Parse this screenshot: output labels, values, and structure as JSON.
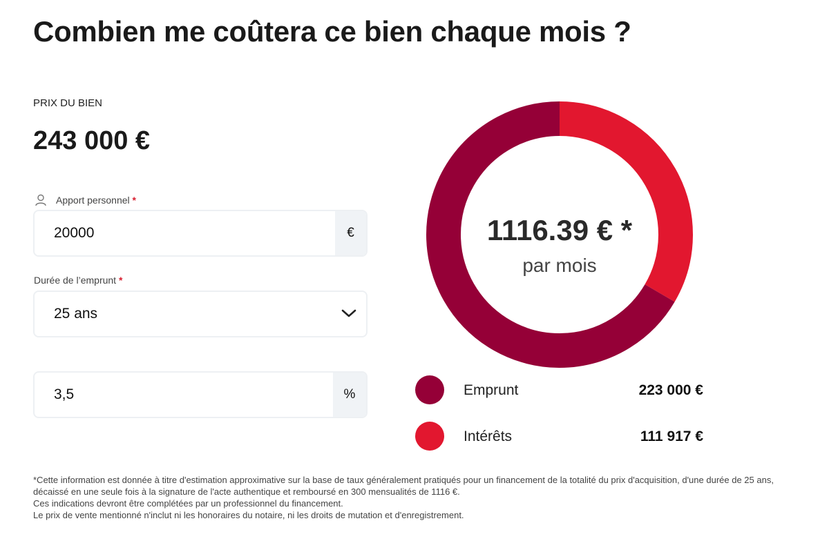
{
  "header": {
    "title": "Combien me coûtera ce bien chaque mois ?"
  },
  "price": {
    "caption": "PRIX DU BIEN",
    "value": "243 000 €"
  },
  "form": {
    "down_payment": {
      "label": "Apport personnel",
      "required": "*",
      "value": "20000",
      "suffix": "€"
    },
    "duration": {
      "label": "Durée de l’emprunt",
      "required": "*",
      "value": "25 ans"
    },
    "rate": {
      "value": "3,5",
      "suffix": "%"
    }
  },
  "donut": {
    "center_value": "1116.39 € *",
    "center_caption": "par mois",
    "segments": [
      {
        "name": "Emprunt",
        "color": "#950037",
        "value": 223000,
        "value_label": "223 000 €"
      },
      {
        "name": "Intérêts",
        "color": "#e2172f",
        "value": 111917,
        "value_label": "111 917 €"
      }
    ]
  },
  "footnote": [
    "*Cette information est donnée à titre d'estimation approximative sur la base de taux généralement pratiqués pour un financement de la totalité du prix d'acquisition, d'une durée de 25 ans, décaissé en une seule fois à la signature de l'acte authentique et remboursé en 300 mensualités de 1116 €.",
    "Ces indications devront être complétées par un professionnel du financement.",
    "Le prix de vente mentionné n'inclut ni les honoraires du notaire, ni les droits de mutation et d'enregistrement."
  ]
}
